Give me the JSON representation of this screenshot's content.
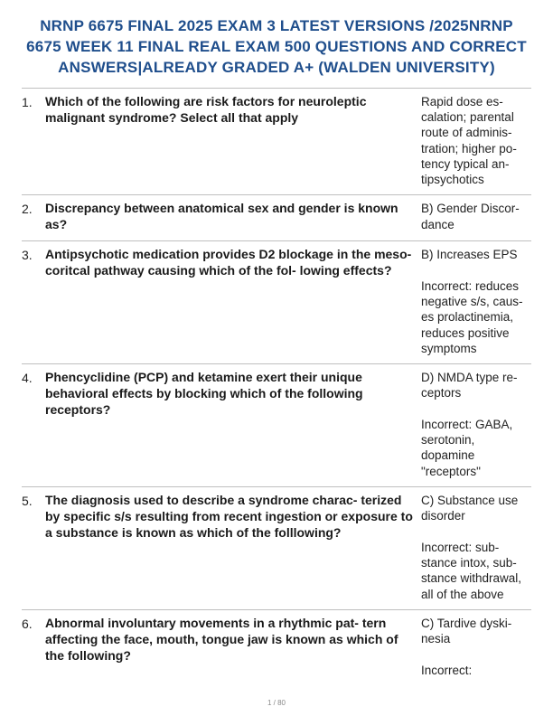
{
  "title": "NRNP 6675 FINAL 2025 EXAM 3 LATEST VERSIONS /2025NRNP 6675 WEEK 11 FINAL REAL EXAM 500 QUESTIONS AND CORRECT ANSWERS|ALREADY GRADED A+ (WALDEN UNIVERSITY)",
  "items": [
    {
      "num": "1.",
      "question": "Which of the following are risk factors for neuroleptic malignant syndrome? Select all that apply",
      "answer": "Rapid dose es-\ncalation; parental\nroute of adminis-\ntration; higher po-\ntency typical an-\ntipsychotics"
    },
    {
      "num": "2.",
      "question": "Discrepancy between anatomical sex and gender is known as?",
      "answer": "B) Gender Discor-\ndance"
    },
    {
      "num": "3.",
      "question": "Antipsychotic medication provides D2 blockage in the meso-coritcal pathway causing which of the fol-\nlowing effects?",
      "answer": "B) Increases EPS\n\nIncorrect: reduces\nnegative s/s, caus-\nes prolactinemia,\nreduces positive\nsymptoms"
    },
    {
      "num": "4.",
      "question": "Phencyclidine (PCP) and ketamine exert their unique behavioral effects by blocking which of the following receptors?",
      "answer": "D) NMDA type re-\nceptors\n\nIncorrect: GABA,\nserotonin,\ndopamine\n\"receptors\""
    },
    {
      "num": "5.",
      "question": "The diagnosis used to describe a syndrome charac-\nterized by specific s/s resulting from recent ingestion or exposure to a substance is known as which of the folllowing?",
      "answer": "C) Substance use\ndisorder\n\nIncorrect: sub-\nstance intox, sub-\nstance withdrawal,\nall of the above"
    },
    {
      "num": "6.",
      "question": "Abnormal involuntary movements in a rhythmic pat-\ntern affecting the face, mouth, tongue jaw is known as which of the following?",
      "answer": "C) Tardive dyski-\nnesia\n\nIncorrect:"
    }
  ],
  "footer": "1 / 80"
}
